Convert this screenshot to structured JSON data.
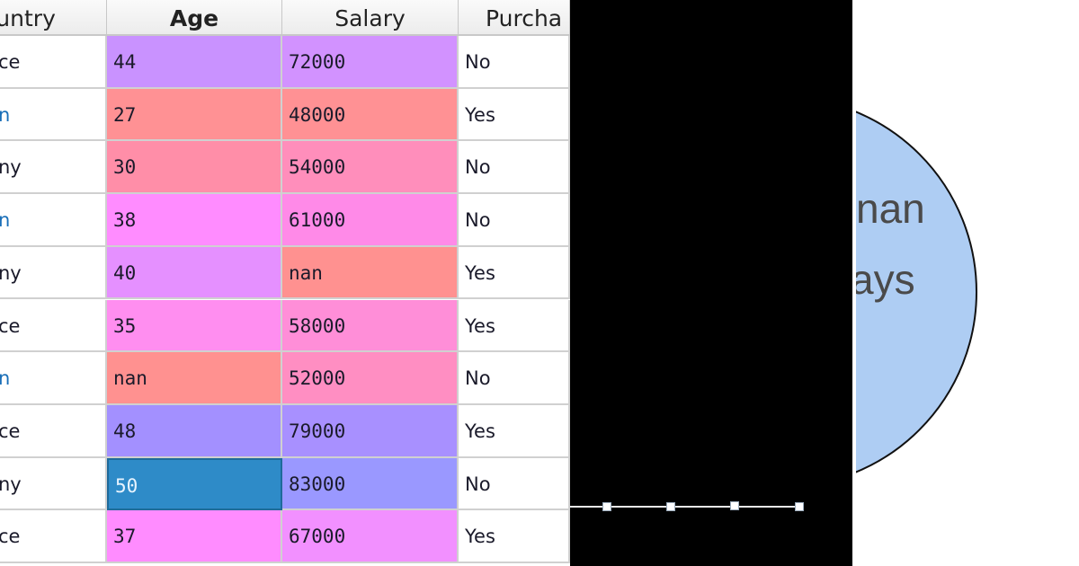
{
  "table": {
    "columns": [
      "ountry",
      "Age",
      "Salary",
      "Purcha"
    ],
    "rows": [
      {
        "country": "ce",
        "age": "44",
        "salary": "72000",
        "purchased": "No",
        "age_color": "#c992ff",
        "salary_color": "#d292ff"
      },
      {
        "country": "n",
        "country_color": "#1a6fb8",
        "age": "27",
        "salary": "48000",
        "purchased": "Yes",
        "age_color": "#ff9194",
        "salary_color": "#ff9194"
      },
      {
        "country": "ny",
        "age": "30",
        "salary": "54000",
        "purchased": "No",
        "age_color": "#ff8ea8",
        "salary_color": "#ff8ebb"
      },
      {
        "country": "n",
        "country_color": "#1a6fb8",
        "age": "38",
        "salary": "61000",
        "purchased": "No",
        "age_color": "#ff8cff",
        "salary_color": "#ff8ae8"
      },
      {
        "country": "ny",
        "age": "40",
        "salary": "nan",
        "purchased": "Yes",
        "age_color": "#e590ff",
        "salary_color": "#ff9190"
      },
      {
        "country": "ce",
        "age": "35",
        "salary": "58000",
        "purchased": "Yes",
        "age_color": "#ff8ef0",
        "salary_color": "#ff8ed8"
      },
      {
        "country": "n",
        "country_color": "#1a6fb8",
        "age": "nan",
        "salary": "52000",
        "purchased": "No",
        "age_color": "#ff9190",
        "salary_color": "#ff8ec2"
      },
      {
        "country": "ce",
        "age": "48",
        "salary": "79000",
        "purchased": "Yes",
        "age_color": "#a390ff",
        "salary_color": "#a890ff"
      },
      {
        "country": "ny",
        "age": "50",
        "salary": "83000",
        "purchased": "No",
        "age_color": "#2e8bc8",
        "salary_color": "#9a98ff",
        "age_selected": true
      },
      {
        "country": "ce",
        "age": "37",
        "salary": "67000",
        "purchased": "Yes",
        "age_color": "#ff8cff",
        "salary_color": "#f290ff"
      }
    ]
  },
  "circle": {
    "fill": "#aecdf3",
    "line1": "nan",
    "line2": "ays"
  },
  "panel": {
    "background": "#000000",
    "handles": 4
  }
}
